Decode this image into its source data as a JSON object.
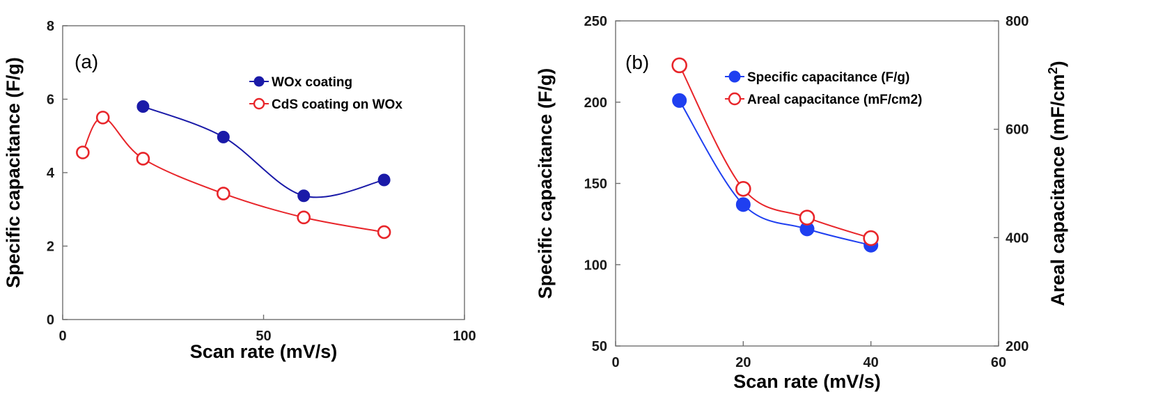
{
  "chart_data": [
    {
      "type": "scatter",
      "panel_label": "(a)",
      "xlabel": "Scan rate (mV/s)",
      "ylabel": "Specific capacitance (F/g)",
      "xlim": [
        0,
        100
      ],
      "ylim": [
        0,
        8
      ],
      "xticks": [
        "0",
        "50",
        "100"
      ],
      "yticks": [
        "0",
        "2",
        "4",
        "6",
        "8"
      ],
      "legend_position": "top-right",
      "grid": false,
      "series": [
        {
          "name": "WOx coating",
          "color": "#1a1aa8",
          "marker": "filled-circle",
          "x": [
            20,
            40,
            60,
            80
          ],
          "y": [
            5.8,
            4.97,
            3.37,
            3.8
          ]
        },
        {
          "name": "CdS coating on WOx",
          "color": "#e8252a",
          "marker": "open-circle",
          "x": [
            5,
            10,
            20,
            40,
            60,
            80
          ],
          "y": [
            4.55,
            5.5,
            4.38,
            3.43,
            2.78,
            2.38
          ]
        }
      ]
    },
    {
      "type": "scatter",
      "panel_label": "(b)",
      "xlabel": "Scan rate (mV/s)",
      "ylabel": "Specific capacitance (F/g)",
      "y2label": "Areal capacitance (mF/cm",
      "y2label_sup": "2",
      "y2label_end": ")",
      "xlim": [
        0,
        60
      ],
      "ylim": [
        50,
        250
      ],
      "y2lim": [
        200,
        800
      ],
      "xticks": [
        "0",
        "20",
        "40",
        "60"
      ],
      "yticks": [
        "50",
        "100",
        "150",
        "200",
        "250"
      ],
      "y2ticks": [
        "200",
        "400",
        "600",
        "800"
      ],
      "legend_position": "top-right",
      "grid": false,
      "series": [
        {
          "name": "Specific capacitance (F/g)",
          "color": "#1f3ff0",
          "marker": "filled-circle",
          "axis": "left",
          "x": [
            10,
            20,
            30,
            40
          ],
          "y": [
            201,
            137,
            122,
            112
          ]
        },
        {
          "name": "Areal capacitance (mF/cm2)",
          "color": "#e8252a",
          "marker": "open-circle",
          "axis": "right",
          "x": [
            10,
            20,
            30,
            40
          ],
          "y": [
            718,
            490,
            437,
            399
          ]
        }
      ]
    }
  ]
}
